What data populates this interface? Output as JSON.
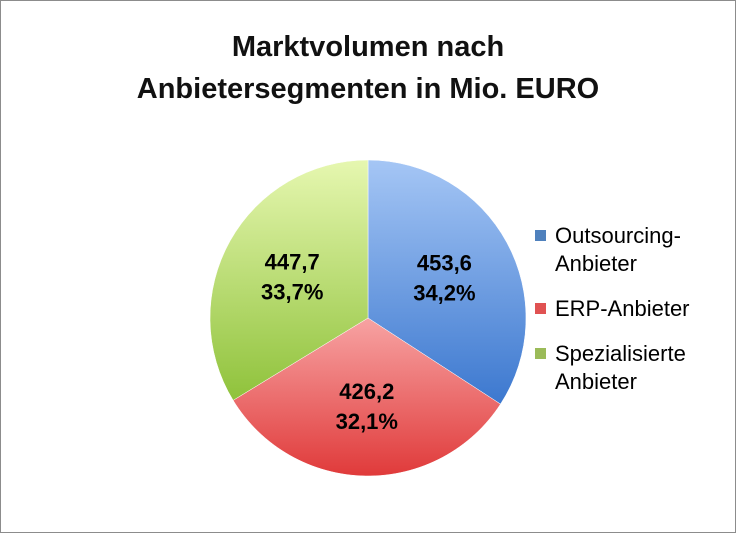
{
  "chart_data": {
    "type": "pie",
    "title_lines": [
      "Marktvolumen nach",
      "Anbietersegmenten in Mio. EURO"
    ],
    "slices": [
      {
        "name": "Outsourcing-\nAnbieter",
        "value": 453.6,
        "value_label": "453,6",
        "percent_label": "34,2%",
        "color": "#4f81bd"
      },
      {
        "name": "ERP-Anbieter",
        "value": 426.2,
        "value_label": "426,2",
        "percent_label": "32,1%",
        "color": "#e05252"
      },
      {
        "name": "Spezialisierte\nAnbieter",
        "value": 447.7,
        "value_label": "447,7",
        "percent_label": "33,7%",
        "color": "#9bbb59"
      }
    ],
    "legend_position": "right"
  }
}
